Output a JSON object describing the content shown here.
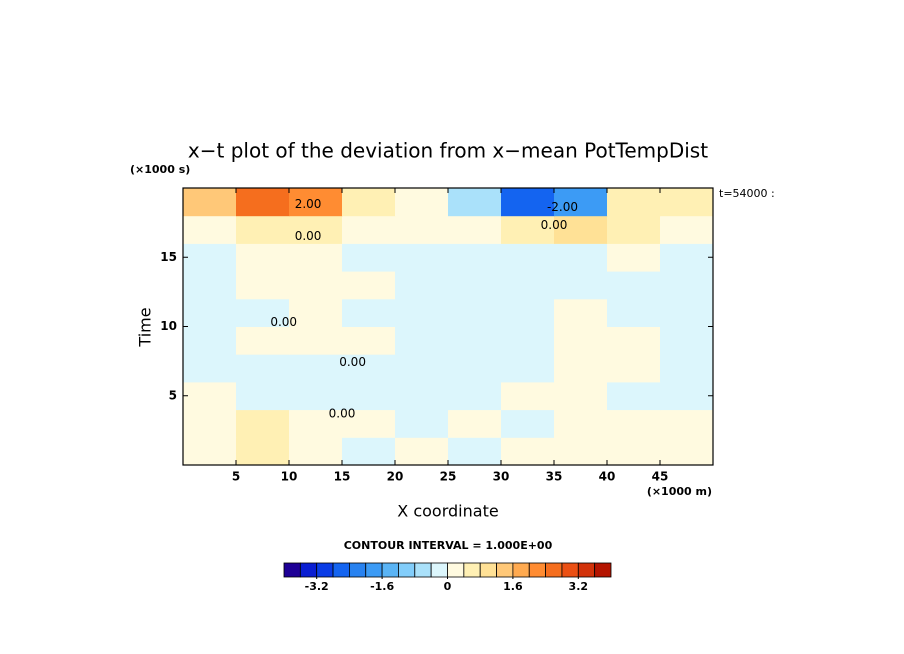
{
  "chart_data": {
    "type": "heatmap",
    "title": "x−t plot of the deviation from x−mean PotTempDist",
    "x_label": "X coordinate",
    "y_label": "Time",
    "x_unit": "(×1000 m)",
    "y_unit": "(×1000 s)",
    "time_stamp": "t=54000 :",
    "contour_interval": "CONTOUR INTERVAL = 1.000E+00",
    "xlim": [
      0,
      50
    ],
    "ylim": [
      0,
      20
    ],
    "xticks": [
      5,
      10,
      15,
      20,
      25,
      30,
      35,
      40,
      45
    ],
    "yticks": [
      5,
      10,
      15
    ],
    "x": [
      2.5,
      7.5,
      12.5,
      17.5,
      22.5,
      27.5,
      32.5,
      37.5,
      42.5,
      47.5
    ],
    "y": [
      1,
      3,
      5,
      7,
      9,
      11,
      13,
      15,
      17,
      19
    ],
    "z": [
      [
        0.3,
        0.4,
        0.2,
        -0.3,
        0.1,
        -0.3,
        0.2,
        0.3,
        0.2,
        0.3
      ],
      [
        0.3,
        0.4,
        0.1,
        0.2,
        -0.3,
        0.1,
        -0.2,
        0.2,
        0.3,
        0.1
      ],
      [
        0.2,
        -0.4,
        -0.4,
        -0.3,
        -0.3,
        -0.2,
        0.2,
        0.3,
        -0.4,
        -0.3
      ],
      [
        -0.2,
        -0.3,
        -0.2,
        -0.2,
        -0.3,
        -0.3,
        -0.3,
        0.3,
        0.2,
        -0.3
      ],
      [
        -0.3,
        0.1,
        0.1,
        0.2,
        -0.3,
        -0.4,
        -0.3,
        0.1,
        0.1,
        -0.3
      ],
      [
        -0.3,
        -0.2,
        0.1,
        -0.2,
        -0.3,
        -0.4,
        -0.3,
        0.2,
        -0.2,
        -0.3
      ],
      [
        -0.3,
        0.1,
        0.2,
        0.1,
        -0.3,
        -0.4,
        -0.4,
        -0.3,
        -0.2,
        -0.3
      ],
      [
        -0.3,
        0.2,
        0.2,
        -0.2,
        -0.3,
        -0.3,
        -0.3,
        -0.2,
        0.1,
        -0.2
      ],
      [
        0.3,
        0.5,
        0.5,
        0.2,
        0.1,
        0.3,
        0.5,
        1.0,
        0.6,
        0.3
      ],
      [
        1.5,
        2.5,
        2.0,
        0.5,
        0.2,
        -0.5,
        -2.5,
        -2.0,
        0.5,
        0.8
      ]
    ],
    "contour_labels": [
      {
        "text": "2.00",
        "x": 11.8,
        "y": 18.8
      },
      {
        "text": "-2.00",
        "x": 35.8,
        "y": 18.6
      },
      {
        "text": "0.00",
        "x": 35,
        "y": 17.3
      },
      {
        "text": "0.00",
        "x": 11.8,
        "y": 16.5
      },
      {
        "text": "0.00",
        "x": 9.5,
        "y": 10.3
      },
      {
        "text": "0.00",
        "x": 16,
        "y": 7.4
      },
      {
        "text": "0.00",
        "x": 15,
        "y": 3.7
      }
    ],
    "clim": [
      -4,
      4
    ],
    "colorbar_ticks": [
      -3.2,
      -1.6,
      0,
      1.6,
      3.2
    ],
    "colors": [
      "#1e0096",
      "#0a1ed2",
      "#0a3ce6",
      "#1464f0",
      "#2882f0",
      "#3c9bf5",
      "#5ab4f5",
      "#82cdfa",
      "#aae1fa",
      "#dcf6fc",
      "#fffae0",
      "#fff0b4",
      "#ffe196",
      "#ffc878",
      "#ffaa50",
      "#ff8c32",
      "#f56e1e",
      "#eb5014",
      "#d2320a",
      "#b41400"
    ]
  }
}
